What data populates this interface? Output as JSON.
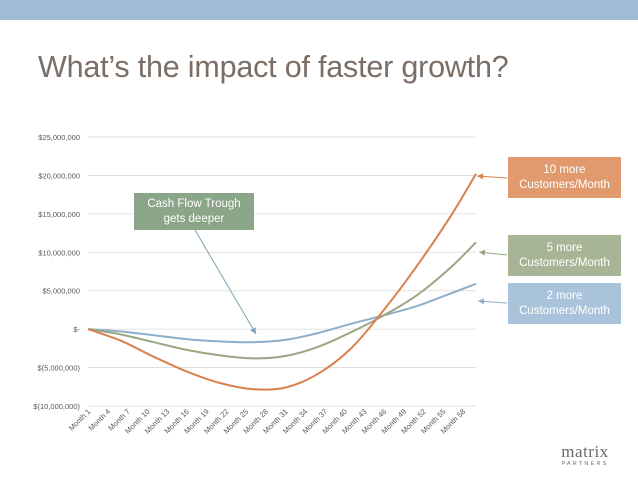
{
  "slide": {
    "title": "What’s the impact of faster growth?",
    "topbar_color": "#9fbcd6"
  },
  "callouts": {
    "trough": {
      "line1": "Cash Flow Trough",
      "line2": "gets deeper",
      "color": "#8aa588"
    },
    "ten": {
      "line1": "10 more",
      "line2": "Customers/Month",
      "color": "#e09a6e"
    },
    "five": {
      "line1": "5 more",
      "line2": "Customers/Month",
      "color": "#a8b496"
    },
    "two": {
      "line1": "2 more",
      "line2": "Customers/Month",
      "color": "#a9c3db"
    }
  },
  "logo": {
    "word": "matrix",
    "sub": "PARTNERS"
  },
  "chart_data": {
    "type": "line",
    "ylim": [
      -10000000,
      25000000
    ],
    "y_ticks": [
      25000000,
      20000000,
      15000000,
      10000000,
      5000000,
      0,
      -5000000,
      -10000000
    ],
    "y_tick_labels": [
      "$25,000,000",
      "$20,000,000",
      "$15,000,000",
      "$10,000,000",
      "$5,000,000",
      "$-",
      "$(5,000,000)",
      "$(10,000,000)"
    ],
    "x_range": [
      1,
      60
    ],
    "x_tick_labels": [
      "Month 1",
      "Month 4",
      "Month 7",
      "Month 10",
      "Month 13",
      "Month 16",
      "Month 19",
      "Month 22",
      "Month 25",
      "Month 28",
      "Month 31",
      "Month 34",
      "Month 37",
      "Month 40",
      "Month 43",
      "Month 46",
      "Month 49",
      "Month 52",
      "Month 55",
      "Month 58"
    ],
    "grid": true,
    "series": [
      {
        "color": "#8faec9",
        "x": [
          1,
          6,
          11,
          16,
          21,
          26,
          31,
          36,
          41,
          46,
          51,
          56,
          60
        ],
        "values": [
          0,
          -300000,
          -800000,
          -1300000,
          -1600000,
          -1700000,
          -1400000,
          -500000,
          700000,
          1800000,
          3000000,
          4600000,
          5900000
        ]
      },
      {
        "color": "#9aa784",
        "x": [
          1,
          6,
          11,
          16,
          21,
          26,
          31,
          36,
          41,
          46,
          51,
          56,
          60
        ],
        "values": [
          0,
          -700000,
          -1700000,
          -2700000,
          -3400000,
          -3800000,
          -3500000,
          -2300000,
          -400000,
          1800000,
          4400000,
          7900000,
          11300000
        ]
      },
      {
        "color": "#d9804f",
        "x": [
          1,
          6,
          11,
          16,
          21,
          26,
          31,
          36,
          41,
          46,
          51,
          56,
          60
        ],
        "values": [
          0,
          -1500000,
          -3600000,
          -5500000,
          -7000000,
          -7800000,
          -7600000,
          -5800000,
          -2500000,
          2500000,
          8200000,
          14500000,
          20200000
        ]
      }
    ]
  }
}
